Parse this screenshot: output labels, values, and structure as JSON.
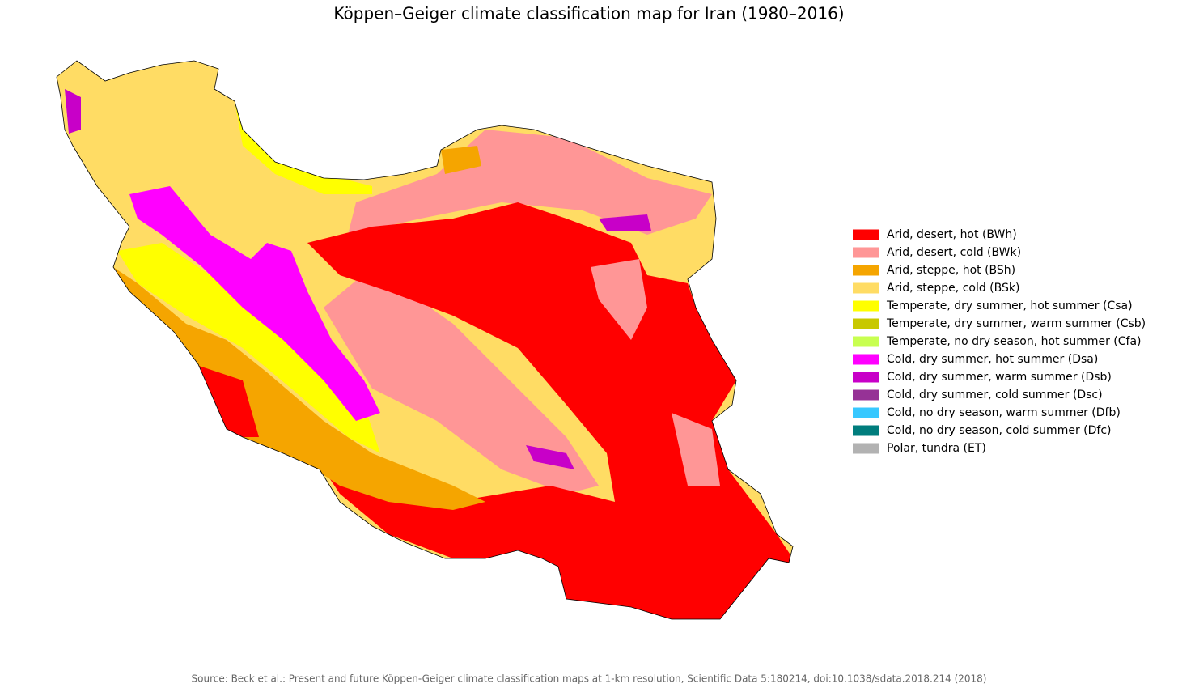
{
  "title": "Köppen–Geiger climate classification map for Iran (1980–2016)",
  "legend": [
    {
      "name": "Arid, desert, hot (BWh)",
      "color": "#ff0000"
    },
    {
      "name": "Arid, desert, cold (BWk)",
      "color": "#ff9696"
    },
    {
      "name": "Arid, steppe, hot (BSh)",
      "color": "#f5a500"
    },
    {
      "name": "Arid, steppe, cold (BSk)",
      "color": "#ffdc64"
    },
    {
      "name": "Temperate, dry summer, hot summer (Csa)",
      "color": "#ffff00"
    },
    {
      "name": "Temperate, dry summer, warm summer (Csb)",
      "color": "#c8c800"
    },
    {
      "name": "Temperate, no dry season, hot summer (Cfa)",
      "color": "#c8ff50"
    },
    {
      "name": "Cold, dry summer, hot summer (Dsa)",
      "color": "#ff00ff"
    },
    {
      "name": "Cold, dry summer, warm summer (Dsb)",
      "color": "#c800c8"
    },
    {
      "name": "Cold, dry summer, cold summer (Dsc)",
      "color": "#963296"
    },
    {
      "name": "Cold, no dry season, warm summer (Dfb)",
      "color": "#37c8ff"
    },
    {
      "name": "Cold, no dry season, cold summer (Dfc)",
      "color": "#007d7d"
    },
    {
      "name": "Polar, tundra (ET)",
      "color": "#b2b2b2"
    }
  ],
  "source": "Source: Beck et al.: Present and future Köppen-Geiger climate classification maps at 1-km resolution, Scientific Data 5:180214, doi:10.1038/sdata.2018.214 (2018)"
}
